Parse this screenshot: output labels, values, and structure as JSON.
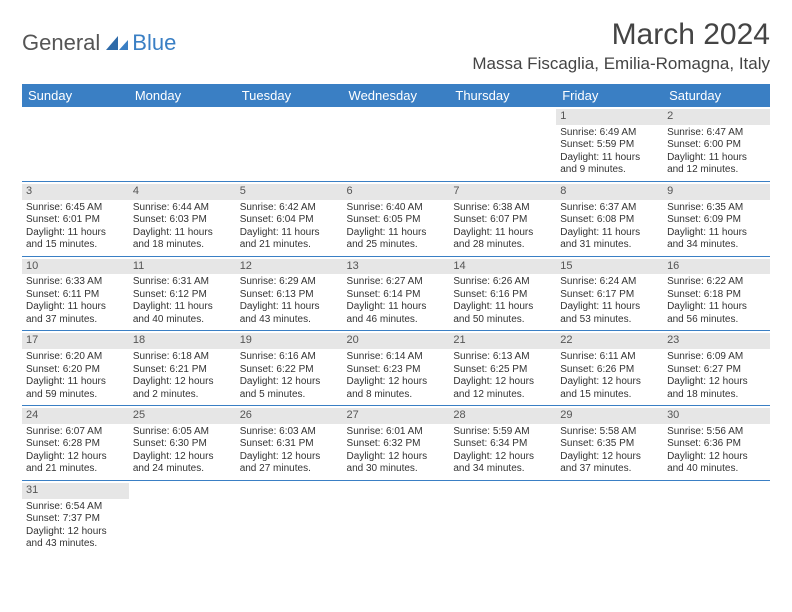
{
  "brand": {
    "part1": "General",
    "part2": "Blue"
  },
  "title": "March 2024",
  "location": "Massa Fiscaglia, Emilia-Romagna, Italy",
  "colors": {
    "accent": "#3a7fc4",
    "dayband": "#e6e6e6",
    "text": "#333333",
    "bg": "#ffffff"
  },
  "weekdays": [
    "Sunday",
    "Monday",
    "Tuesday",
    "Wednesday",
    "Thursday",
    "Friday",
    "Saturday"
  ],
  "weeks": [
    [
      {
        "empty": true
      },
      {
        "empty": true
      },
      {
        "empty": true
      },
      {
        "empty": true
      },
      {
        "empty": true
      },
      {
        "day": "1",
        "sunrise": "Sunrise: 6:49 AM",
        "sunset": "Sunset: 5:59 PM",
        "daylight1": "Daylight: 11 hours",
        "daylight2": "and 9 minutes."
      },
      {
        "day": "2",
        "sunrise": "Sunrise: 6:47 AM",
        "sunset": "Sunset: 6:00 PM",
        "daylight1": "Daylight: 11 hours",
        "daylight2": "and 12 minutes."
      }
    ],
    [
      {
        "day": "3",
        "sunrise": "Sunrise: 6:45 AM",
        "sunset": "Sunset: 6:01 PM",
        "daylight1": "Daylight: 11 hours",
        "daylight2": "and 15 minutes."
      },
      {
        "day": "4",
        "sunrise": "Sunrise: 6:44 AM",
        "sunset": "Sunset: 6:03 PM",
        "daylight1": "Daylight: 11 hours",
        "daylight2": "and 18 minutes."
      },
      {
        "day": "5",
        "sunrise": "Sunrise: 6:42 AM",
        "sunset": "Sunset: 6:04 PM",
        "daylight1": "Daylight: 11 hours",
        "daylight2": "and 21 minutes."
      },
      {
        "day": "6",
        "sunrise": "Sunrise: 6:40 AM",
        "sunset": "Sunset: 6:05 PM",
        "daylight1": "Daylight: 11 hours",
        "daylight2": "and 25 minutes."
      },
      {
        "day": "7",
        "sunrise": "Sunrise: 6:38 AM",
        "sunset": "Sunset: 6:07 PM",
        "daylight1": "Daylight: 11 hours",
        "daylight2": "and 28 minutes."
      },
      {
        "day": "8",
        "sunrise": "Sunrise: 6:37 AM",
        "sunset": "Sunset: 6:08 PM",
        "daylight1": "Daylight: 11 hours",
        "daylight2": "and 31 minutes."
      },
      {
        "day": "9",
        "sunrise": "Sunrise: 6:35 AM",
        "sunset": "Sunset: 6:09 PM",
        "daylight1": "Daylight: 11 hours",
        "daylight2": "and 34 minutes."
      }
    ],
    [
      {
        "day": "10",
        "sunrise": "Sunrise: 6:33 AM",
        "sunset": "Sunset: 6:11 PM",
        "daylight1": "Daylight: 11 hours",
        "daylight2": "and 37 minutes."
      },
      {
        "day": "11",
        "sunrise": "Sunrise: 6:31 AM",
        "sunset": "Sunset: 6:12 PM",
        "daylight1": "Daylight: 11 hours",
        "daylight2": "and 40 minutes."
      },
      {
        "day": "12",
        "sunrise": "Sunrise: 6:29 AM",
        "sunset": "Sunset: 6:13 PM",
        "daylight1": "Daylight: 11 hours",
        "daylight2": "and 43 minutes."
      },
      {
        "day": "13",
        "sunrise": "Sunrise: 6:27 AM",
        "sunset": "Sunset: 6:14 PM",
        "daylight1": "Daylight: 11 hours",
        "daylight2": "and 46 minutes."
      },
      {
        "day": "14",
        "sunrise": "Sunrise: 6:26 AM",
        "sunset": "Sunset: 6:16 PM",
        "daylight1": "Daylight: 11 hours",
        "daylight2": "and 50 minutes."
      },
      {
        "day": "15",
        "sunrise": "Sunrise: 6:24 AM",
        "sunset": "Sunset: 6:17 PM",
        "daylight1": "Daylight: 11 hours",
        "daylight2": "and 53 minutes."
      },
      {
        "day": "16",
        "sunrise": "Sunrise: 6:22 AM",
        "sunset": "Sunset: 6:18 PM",
        "daylight1": "Daylight: 11 hours",
        "daylight2": "and 56 minutes."
      }
    ],
    [
      {
        "day": "17",
        "sunrise": "Sunrise: 6:20 AM",
        "sunset": "Sunset: 6:20 PM",
        "daylight1": "Daylight: 11 hours",
        "daylight2": "and 59 minutes."
      },
      {
        "day": "18",
        "sunrise": "Sunrise: 6:18 AM",
        "sunset": "Sunset: 6:21 PM",
        "daylight1": "Daylight: 12 hours",
        "daylight2": "and 2 minutes."
      },
      {
        "day": "19",
        "sunrise": "Sunrise: 6:16 AM",
        "sunset": "Sunset: 6:22 PM",
        "daylight1": "Daylight: 12 hours",
        "daylight2": "and 5 minutes."
      },
      {
        "day": "20",
        "sunrise": "Sunrise: 6:14 AM",
        "sunset": "Sunset: 6:23 PM",
        "daylight1": "Daylight: 12 hours",
        "daylight2": "and 8 minutes."
      },
      {
        "day": "21",
        "sunrise": "Sunrise: 6:13 AM",
        "sunset": "Sunset: 6:25 PM",
        "daylight1": "Daylight: 12 hours",
        "daylight2": "and 12 minutes."
      },
      {
        "day": "22",
        "sunrise": "Sunrise: 6:11 AM",
        "sunset": "Sunset: 6:26 PM",
        "daylight1": "Daylight: 12 hours",
        "daylight2": "and 15 minutes."
      },
      {
        "day": "23",
        "sunrise": "Sunrise: 6:09 AM",
        "sunset": "Sunset: 6:27 PM",
        "daylight1": "Daylight: 12 hours",
        "daylight2": "and 18 minutes."
      }
    ],
    [
      {
        "day": "24",
        "sunrise": "Sunrise: 6:07 AM",
        "sunset": "Sunset: 6:28 PM",
        "daylight1": "Daylight: 12 hours",
        "daylight2": "and 21 minutes."
      },
      {
        "day": "25",
        "sunrise": "Sunrise: 6:05 AM",
        "sunset": "Sunset: 6:30 PM",
        "daylight1": "Daylight: 12 hours",
        "daylight2": "and 24 minutes."
      },
      {
        "day": "26",
        "sunrise": "Sunrise: 6:03 AM",
        "sunset": "Sunset: 6:31 PM",
        "daylight1": "Daylight: 12 hours",
        "daylight2": "and 27 minutes."
      },
      {
        "day": "27",
        "sunrise": "Sunrise: 6:01 AM",
        "sunset": "Sunset: 6:32 PM",
        "daylight1": "Daylight: 12 hours",
        "daylight2": "and 30 minutes."
      },
      {
        "day": "28",
        "sunrise": "Sunrise: 5:59 AM",
        "sunset": "Sunset: 6:34 PM",
        "daylight1": "Daylight: 12 hours",
        "daylight2": "and 34 minutes."
      },
      {
        "day": "29",
        "sunrise": "Sunrise: 5:58 AM",
        "sunset": "Sunset: 6:35 PM",
        "daylight1": "Daylight: 12 hours",
        "daylight2": "and 37 minutes."
      },
      {
        "day": "30",
        "sunrise": "Sunrise: 5:56 AM",
        "sunset": "Sunset: 6:36 PM",
        "daylight1": "Daylight: 12 hours",
        "daylight2": "and 40 minutes."
      }
    ],
    [
      {
        "day": "31",
        "sunrise": "Sunrise: 6:54 AM",
        "sunset": "Sunset: 7:37 PM",
        "daylight1": "Daylight: 12 hours",
        "daylight2": "and 43 minutes."
      },
      {
        "empty": true
      },
      {
        "empty": true
      },
      {
        "empty": true
      },
      {
        "empty": true
      },
      {
        "empty": true
      },
      {
        "empty": true
      }
    ]
  ]
}
